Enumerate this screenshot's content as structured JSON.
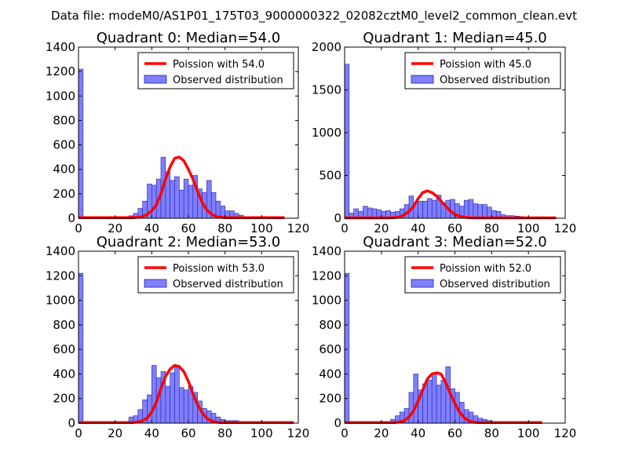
{
  "colors": {
    "bar_fill": "#7f7fff",
    "bar_stroke": "#2222aa",
    "line": "#ff0000",
    "axes": "#000000",
    "background": "#ffffff"
  },
  "figure_title": "Data file: modeM0/AS1P01_175T03_9000000322_02082cztM0_level2_common_clean.evt",
  "chart_data": [
    {
      "type": "bar",
      "title": "Quadrant 0: Median=54.0",
      "legend_line": "Poission with 54.0",
      "legend_bar": "Observed distribution",
      "xlim": [
        0,
        120
      ],
      "ylim": [
        0,
        1400
      ],
      "xticks": [
        "0",
        "20",
        "40",
        "60",
        "80",
        "100",
        "120"
      ],
      "yticks": [
        "0",
        "200",
        "400",
        "600",
        "800",
        "1000",
        "1200",
        "1400"
      ],
      "bin_width": 2.5,
      "bins": [
        [
          0,
          1220
        ],
        [
          27.5,
          20
        ],
        [
          30,
          40
        ],
        [
          32.5,
          80
        ],
        [
          35,
          140
        ],
        [
          37.5,
          280
        ],
        [
          40,
          270
        ],
        [
          42.5,
          320
        ],
        [
          45,
          500
        ],
        [
          47.5,
          380
        ],
        [
          50,
          310
        ],
        [
          52.5,
          340
        ],
        [
          55,
          230
        ],
        [
          57.5,
          320
        ],
        [
          60,
          270
        ],
        [
          62.5,
          350
        ],
        [
          65,
          240
        ],
        [
          67.5,
          210
        ],
        [
          70,
          310
        ],
        [
          72.5,
          210
        ],
        [
          75,
          140
        ],
        [
          77.5,
          100
        ],
        [
          80,
          60
        ],
        [
          82.5,
          60
        ],
        [
          85,
          40
        ],
        [
          87.5,
          25
        ],
        [
          92.5,
          10
        ]
      ],
      "poisson_x": [
        0,
        30,
        32.5,
        35,
        37.5,
        40,
        42.5,
        45,
        47.5,
        50,
        52.5,
        55,
        57.5,
        60,
        62.5,
        65,
        67.5,
        70,
        72.5,
        75,
        77.5,
        80,
        82.5,
        85,
        112.5
      ],
      "poisson_y": [
        5,
        5,
        8,
        15,
        30,
        60,
        110,
        200,
        320,
        420,
        490,
        500,
        470,
        400,
        320,
        220,
        130,
        70,
        35,
        15,
        8,
        5,
        5,
        5,
        5
      ]
    },
    {
      "type": "bar",
      "title": "Quadrant 1: Median=45.0",
      "legend_line": "Poission with 45.0",
      "legend_bar": "Observed distribution",
      "xlim": [
        0,
        120
      ],
      "ylim": [
        0,
        2000
      ],
      "xticks": [
        "0",
        "20",
        "40",
        "60",
        "80",
        "100",
        "120"
      ],
      "yticks": [
        "0",
        "500",
        "1000",
        "1500",
        "2000"
      ],
      "bin_width": 2.5,
      "bins": [
        [
          0,
          1800
        ],
        [
          2.5,
          60
        ],
        [
          5,
          110
        ],
        [
          7.5,
          80
        ],
        [
          10,
          140
        ],
        [
          12.5,
          120
        ],
        [
          15,
          110
        ],
        [
          17.5,
          100
        ],
        [
          20,
          80
        ],
        [
          22.5,
          90
        ],
        [
          25,
          70
        ],
        [
          27.5,
          80
        ],
        [
          30,
          110
        ],
        [
          32.5,
          160
        ],
        [
          35,
          260
        ],
        [
          37.5,
          180
        ],
        [
          40,
          200
        ],
        [
          42.5,
          200
        ],
        [
          45,
          230
        ],
        [
          47.5,
          210
        ],
        [
          50,
          270
        ],
        [
          52.5,
          180
        ],
        [
          55,
          210
        ],
        [
          57.5,
          220
        ],
        [
          60,
          170
        ],
        [
          62.5,
          140
        ],
        [
          65,
          210
        ],
        [
          67.5,
          220
        ],
        [
          70,
          170
        ],
        [
          72.5,
          160
        ],
        [
          75,
          160
        ],
        [
          77.5,
          130
        ],
        [
          80,
          90
        ],
        [
          82.5,
          80
        ],
        [
          85,
          40
        ],
        [
          87.5,
          30
        ],
        [
          90,
          30
        ],
        [
          92.5,
          25
        ],
        [
          95,
          20
        ]
      ],
      "poisson_x": [
        0,
        25,
        27.5,
        30,
        32.5,
        35,
        37.5,
        40,
        42.5,
        45,
        47.5,
        50,
        52.5,
        55,
        57.5,
        60,
        62.5,
        65,
        67.5,
        70,
        72.5,
        75,
        77.5,
        115
      ],
      "poisson_y": [
        5,
        5,
        8,
        15,
        40,
        80,
        140,
        230,
        300,
        320,
        300,
        260,
        200,
        140,
        85,
        45,
        25,
        12,
        6,
        5,
        5,
        5,
        5,
        5
      ]
    },
    {
      "type": "bar",
      "title": "Quadrant 2: Median=53.0",
      "legend_line": "Poission with 53.0",
      "legend_bar": "Observed distribution",
      "xlim": [
        0,
        120
      ],
      "ylim": [
        0,
        1400
      ],
      "xticks": [
        "0",
        "20",
        "40",
        "60",
        "80",
        "100",
        "120"
      ],
      "yticks": [
        "0",
        "200",
        "400",
        "600",
        "800",
        "1000",
        "1200",
        "1400"
      ],
      "bin_width": 2.5,
      "bins": [
        [
          0,
          1220
        ],
        [
          27.5,
          50
        ],
        [
          30,
          60
        ],
        [
          32.5,
          110
        ],
        [
          35,
          190
        ],
        [
          37.5,
          230
        ],
        [
          40,
          470
        ],
        [
          42.5,
          370
        ],
        [
          45,
          420
        ],
        [
          47.5,
          300
        ],
        [
          50,
          410
        ],
        [
          52.5,
          470
        ],
        [
          55,
          290
        ],
        [
          57.5,
          270
        ],
        [
          60,
          300
        ],
        [
          62.5,
          250
        ],
        [
          65,
          180
        ],
        [
          67.5,
          120
        ],
        [
          70,
          100
        ],
        [
          72.5,
          80
        ],
        [
          75,
          50
        ],
        [
          77.5,
          30
        ],
        [
          80,
          20
        ],
        [
          82.5,
          20
        ],
        [
          85,
          20
        ],
        [
          87.5,
          10
        ]
      ],
      "poisson_x": [
        0,
        30,
        32.5,
        35,
        37.5,
        40,
        42.5,
        45,
        47.5,
        50,
        52.5,
        55,
        57.5,
        60,
        62.5,
        65,
        67.5,
        70,
        72.5,
        75,
        77.5,
        80,
        117.5
      ],
      "poisson_y": [
        5,
        5,
        10,
        20,
        40,
        90,
        170,
        280,
        380,
        440,
        470,
        460,
        420,
        340,
        240,
        150,
        85,
        40,
        18,
        8,
        5,
        5,
        5
      ]
    },
    {
      "type": "bar",
      "title": "Quadrant 3: Median=52.0",
      "legend_line": "Poission with 52.0",
      "legend_bar": "Observed distribution",
      "xlim": [
        0,
        120
      ],
      "ylim": [
        0,
        1400
      ],
      "xticks": [
        "0",
        "20",
        "40",
        "60",
        "80",
        "100",
        "120"
      ],
      "yticks": [
        "0",
        "200",
        "400",
        "600",
        "800",
        "1000",
        "1200",
        "1400"
      ],
      "bin_width": 2.5,
      "bins": [
        [
          0,
          1220
        ],
        [
          25,
          30
        ],
        [
          27.5,
          60
        ],
        [
          30,
          90
        ],
        [
          32.5,
          120
        ],
        [
          35,
          250
        ],
        [
          37.5,
          400
        ],
        [
          40,
          270
        ],
        [
          42.5,
          320
        ],
        [
          45,
          350
        ],
        [
          47.5,
          410
        ],
        [
          50,
          310
        ],
        [
          52.5,
          350
        ],
        [
          55,
          460
        ],
        [
          57.5,
          280
        ],
        [
          60,
          250
        ],
        [
          62.5,
          170
        ],
        [
          65,
          110
        ],
        [
          67.5,
          90
        ],
        [
          70,
          60
        ],
        [
          72.5,
          40
        ],
        [
          75,
          30
        ],
        [
          77.5,
          20
        ],
        [
          80,
          10
        ]
      ],
      "poisson_x": [
        0,
        27.5,
        30,
        32.5,
        35,
        37.5,
        40,
        42.5,
        45,
        47.5,
        50,
        52.5,
        55,
        57.5,
        60,
        62.5,
        65,
        67.5,
        70,
        72.5,
        75,
        107.5
      ],
      "poisson_y": [
        5,
        5,
        10,
        20,
        50,
        100,
        180,
        270,
        360,
        400,
        410,
        400,
        330,
        240,
        160,
        90,
        45,
        20,
        8,
        5,
        5,
        5
      ]
    }
  ]
}
